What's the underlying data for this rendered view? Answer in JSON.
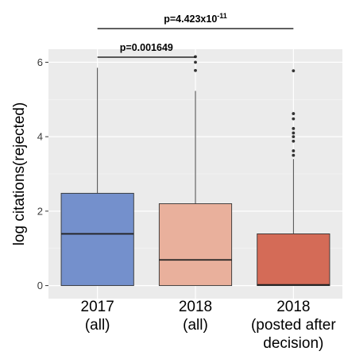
{
  "chart_data": {
    "type": "box",
    "title": "",
    "xlabel": "",
    "ylabel": "log citations(rejected)",
    "ylim": [
      -0.35,
      6.35
    ],
    "yticks": [
      0,
      2,
      4,
      6
    ],
    "grid": true,
    "categories": [
      {
        "label": [
          "2017",
          "(all)"
        ]
      },
      {
        "label": [
          "2018",
          "(all)"
        ]
      },
      {
        "label": [
          "2018",
          "(posted after",
          "decision)"
        ]
      }
    ],
    "boxes": [
      {
        "q1": 0,
        "median": 1.39,
        "q3": 2.48,
        "whisker_low": 0,
        "whisker_high": 5.85,
        "outliers": [],
        "color": "#7490cc"
      },
      {
        "q1": 0,
        "median": 0.69,
        "q3": 2.2,
        "whisker_low": 0,
        "whisker_high": 5.23,
        "outliers": [
          5.78,
          6.0,
          6.15
        ],
        "color": "#e9b09c"
      },
      {
        "q1": 0,
        "median": 0.02,
        "q3": 1.39,
        "whisker_low": 0,
        "whisker_high": 3.4,
        "outliers": [
          3.5,
          3.62,
          3.88,
          4.0,
          4.1,
          4.22,
          4.48,
          4.62,
          5.77
        ],
        "color": "#d46b57"
      }
    ],
    "comparisons": [
      {
        "from": 0,
        "to": 1,
        "label": "p=0.001649"
      },
      {
        "from": 0,
        "to": 2,
        "label": "p=4.423x10",
        "label_exp": "-11"
      }
    ]
  }
}
